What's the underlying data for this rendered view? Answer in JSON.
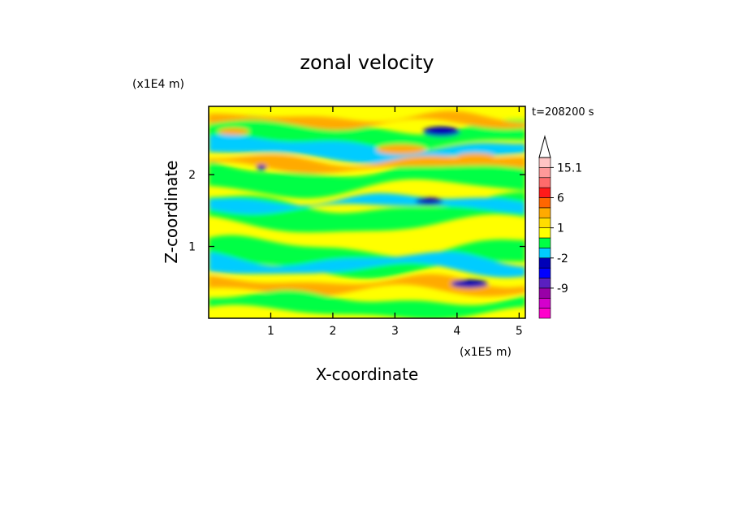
{
  "chart_data": {
    "type": "heatmap",
    "title": "zonal velocity",
    "xlabel": "X-coordinate",
    "ylabel": "Z-coordinate",
    "x_unit": "(x1E5 m)",
    "y_unit": "(x1E4 m)",
    "time_label": "t=208200 s",
    "xlim": [
      0,
      5.1
    ],
    "ylim": [
      0,
      2.95
    ],
    "x_ticks": [
      1,
      2,
      3,
      4,
      5
    ],
    "y_ticks": [
      1,
      2
    ],
    "colorbar": {
      "levels": [
        {
          "color": "#ff00cc",
          "label": ""
        },
        {
          "color": "#d400cc",
          "label": ""
        },
        {
          "color": "#9900a8",
          "label": "-9"
        },
        {
          "color": "#5a1fbf",
          "label": ""
        },
        {
          "color": "#0000ff",
          "label": ""
        },
        {
          "color": "#0000b8",
          "label": "-2"
        },
        {
          "color": "#00ccff",
          "label": ""
        },
        {
          "color": "#00ff44",
          "label": ""
        },
        {
          "color": "#ffff00",
          "label": "1"
        },
        {
          "color": "#ffdd00",
          "label": ""
        },
        {
          "color": "#ffaa00",
          "label": ""
        },
        {
          "color": "#ff6600",
          "label": "6"
        },
        {
          "color": "#ff1a1a",
          "label": ""
        },
        {
          "color": "#ff6b6b",
          "label": ""
        },
        {
          "color": "#ff9999",
          "label": "15.1"
        },
        {
          "color": "#ffc4c4",
          "label": ""
        }
      ]
    }
  }
}
